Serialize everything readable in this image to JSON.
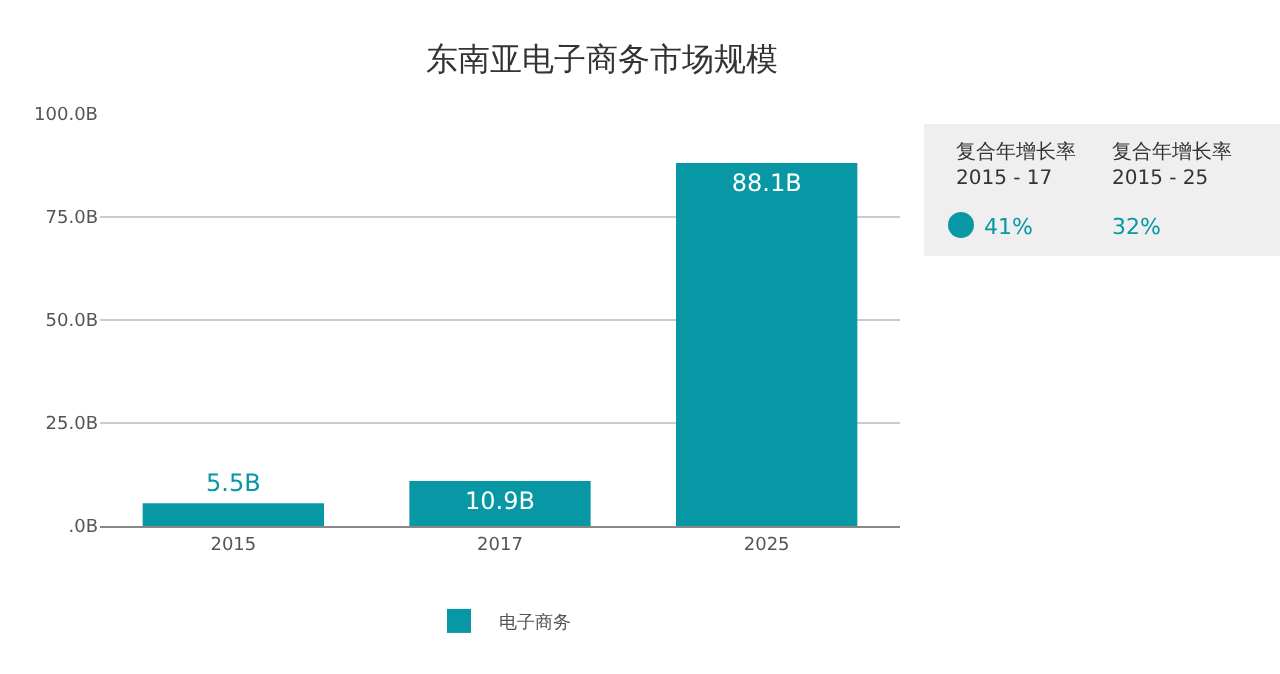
{
  "chart_data": {
    "type": "bar",
    "title": "东南亚电子商务市场规模",
    "categories": [
      "2015",
      "2017",
      "2025"
    ],
    "series": [
      {
        "name": "电子商务",
        "color": "#0898a5",
        "values": [
          5.5,
          10.9,
          88.1
        ],
        "value_labels": [
          "5.5B",
          "10.9B",
          "88.1B"
        ]
      }
    ],
    "ylim": [
      0,
      100
    ],
    "yticks": [
      {
        "value": 0,
        "label": ".0B"
      },
      {
        "value": 25,
        "label": "25.0B"
      },
      {
        "value": 50,
        "label": "50.0B"
      },
      {
        "value": 75,
        "label": "75.0B"
      },
      {
        "value": 100,
        "label": "100.0B"
      }
    ],
    "grid": "y",
    "legend": "bottom",
    "annotations": [
      "复合年增长率\n2015 - 17",
      "复合年增长率\n2015 - 25",
      "41%",
      "32%"
    ]
  }
}
